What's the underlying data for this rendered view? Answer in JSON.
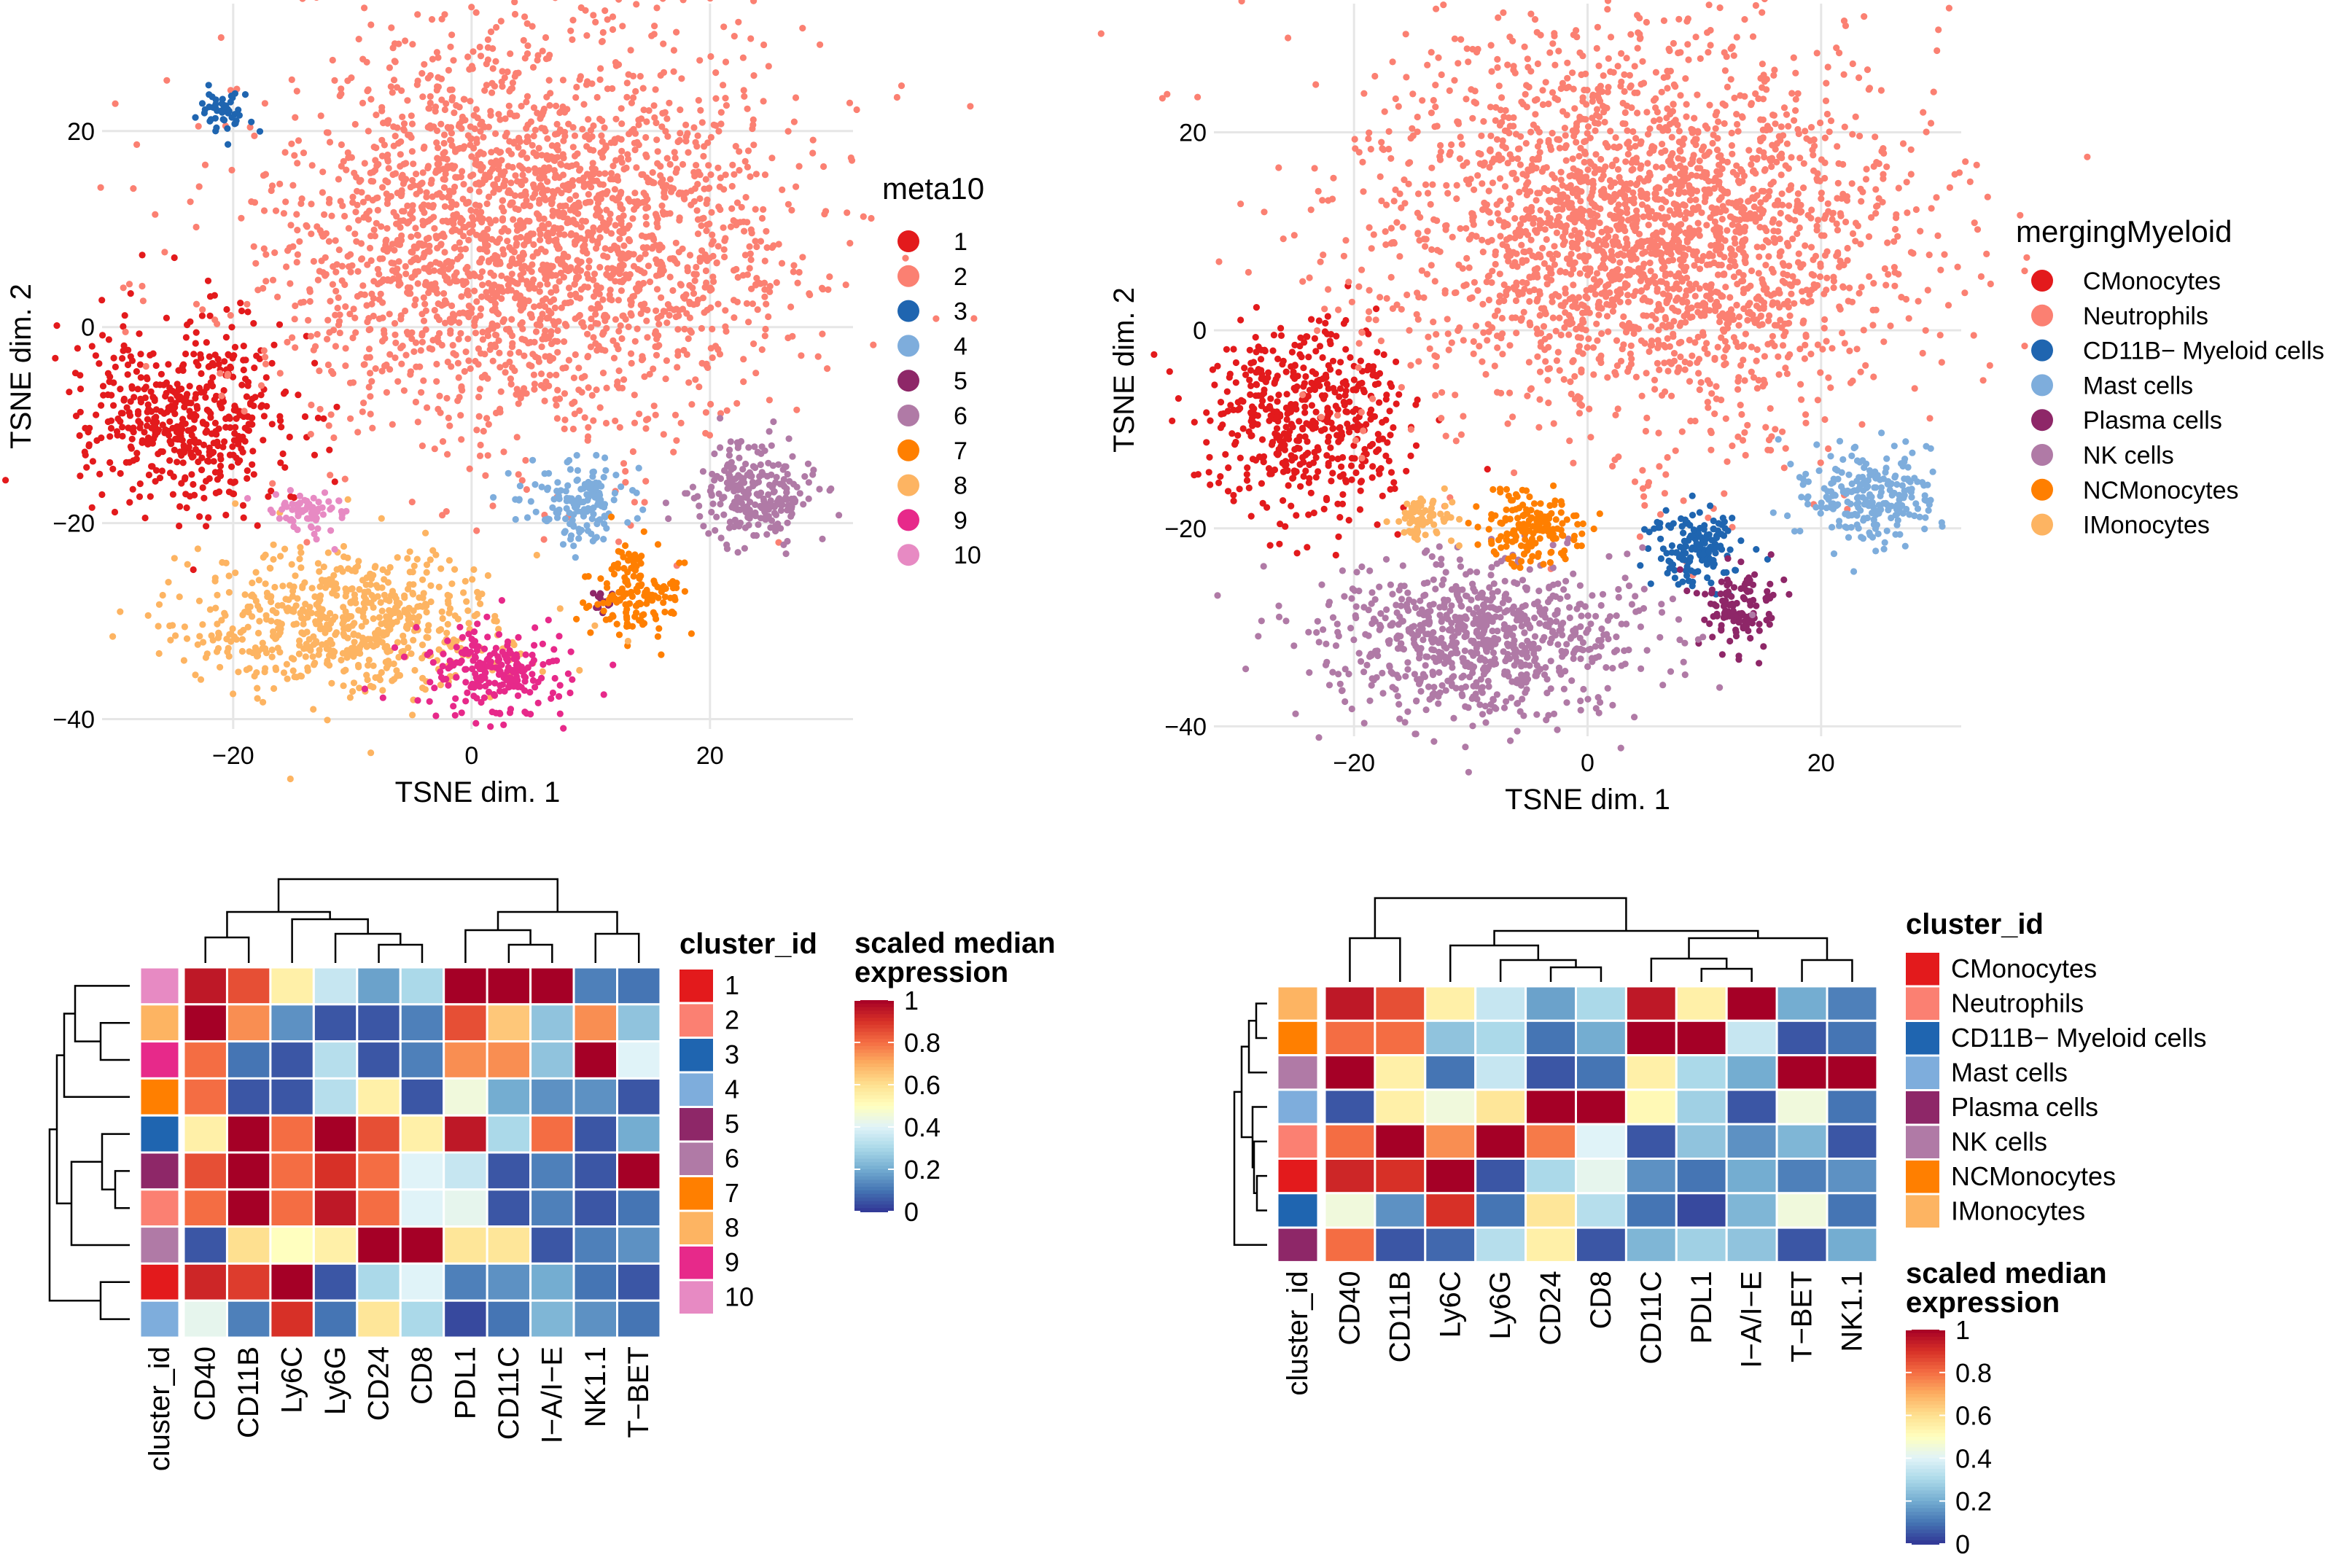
{
  "colors": {
    "palette10": [
      "#e31a1c",
      "#fb8072",
      "#1f65b0",
      "#7eaddc",
      "#8e2768",
      "#b07aa6",
      "#ff7f00",
      "#fdb462",
      "#e7298a",
      "#e78ac3"
    ],
    "gradient": [
      "#313695",
      "#4575b4",
      "#74add1",
      "#abd9e9",
      "#e0f3f8",
      "#ffffbf",
      "#fee090",
      "#fdae61",
      "#f46d43",
      "#d73027",
      "#a50026"
    ]
  },
  "chart_data": [
    {
      "type": "scatter",
      "id": "tsne-meta10",
      "xlabel": "TSNE dim. 1",
      "ylabel": "TSNE dim. 2",
      "xlim": [
        -31,
        32
      ],
      "ylim": [
        -41,
        33
      ],
      "xticks": [
        -20,
        0,
        20
      ],
      "xtick_labels": [
        "−20",
        "0",
        "20"
      ],
      "yticks": [
        20,
        0,
        -20,
        -40
      ],
      "ytick_labels": [
        "20",
        "0",
        "−20",
        "−40"
      ],
      "grid": true,
      "legend_title": "meta10",
      "legend_labels": [
        "1",
        "2",
        "3",
        "4",
        "5",
        "6",
        "7",
        "8",
        "9",
        "10"
      ],
      "clusters": [
        {
          "label": "1",
          "color_index": 0,
          "center": [
            -24,
            -9
          ],
          "spread": [
            4.2,
            5.0
          ],
          "n": 500
        },
        {
          "label": "2",
          "color_index": 1,
          "center": [
            5,
            10
          ],
          "spread": [
            11.0,
            10.0
          ],
          "n": 2500
        },
        {
          "label": "3",
          "color_index": 2,
          "center": [
            -21,
            22
          ],
          "spread": [
            1.0,
            1.2
          ],
          "n": 50
        },
        {
          "label": "4",
          "color_index": 3,
          "center": [
            9,
            -18
          ],
          "spread": [
            2.2,
            2.0
          ],
          "n": 150
        },
        {
          "label": "5",
          "color_index": 4,
          "center": [
            11,
            -28
          ],
          "spread": [
            0.6,
            0.6
          ],
          "n": 12
        },
        {
          "label": "6",
          "color_index": 5,
          "center": [
            24,
            -17
          ],
          "spread": [
            2.6,
            2.5
          ],
          "n": 240
        },
        {
          "label": "7",
          "color_index": 6,
          "center": [
            14,
            -27
          ],
          "spread": [
            2.0,
            2.2
          ],
          "n": 150
        },
        {
          "label": "8",
          "color_index": 7,
          "center": [
            -10,
            -30
          ],
          "spread": [
            6.5,
            3.5
          ],
          "n": 650
        },
        {
          "label": "9",
          "color_index": 8,
          "center": [
            2,
            -35
          ],
          "spread": [
            3.0,
            2.3
          ],
          "n": 220
        },
        {
          "label": "10",
          "color_index": 9,
          "center": [
            -14,
            -19
          ],
          "spread": [
            1.5,
            1.1
          ],
          "n": 70
        }
      ]
    },
    {
      "type": "scatter",
      "id": "tsne-merging",
      "xlabel": "TSNE dim. 1",
      "ylabel": "TSNE dim. 2",
      "xlim": [
        -32,
        32
      ],
      "ylim": [
        -41,
        33
      ],
      "xticks": [
        -20,
        0,
        20
      ],
      "xtick_labels": [
        "−20",
        "0",
        "20"
      ],
      "yticks": [
        20,
        0,
        -20,
        -40
      ],
      "ytick_labels": [
        "20",
        "0",
        "−20",
        "−40"
      ],
      "grid": true,
      "legend_title": "mergingMyeloid",
      "legend_labels": [
        "CMonocytes",
        "Neutrophils",
        "CD11B− Myeloid cells",
        "Mast cells",
        "Plasma cells",
        "NK cells",
        "NCMonocytes",
        "IMonocytes"
      ],
      "clusters": [
        {
          "label": "CMonocytes",
          "color_index": 0,
          "center": [
            -24,
            -9
          ],
          "spread": [
            4.2,
            5.0
          ],
          "n": 500
        },
        {
          "label": "Neutrophils",
          "color_index": 1,
          "center": [
            5,
            10
          ],
          "spread": [
            11.0,
            10.0
          ],
          "n": 2500
        },
        {
          "label": "CD11B− Myeloid cells",
          "color_index": 2,
          "center": [
            9,
            -22
          ],
          "spread": [
            2.0,
            2.0
          ],
          "n": 150
        },
        {
          "label": "Mast cells",
          "color_index": 3,
          "center": [
            24,
            -17
          ],
          "spread": [
            2.6,
            2.5
          ],
          "n": 240
        },
        {
          "label": "Plasma cells",
          "color_index": 4,
          "center": [
            13,
            -28
          ],
          "spread": [
            1.6,
            1.8
          ],
          "n": 120
        },
        {
          "label": "NK cells",
          "color_index": 5,
          "center": [
            -9,
            -31
          ],
          "spread": [
            7.0,
            3.8
          ],
          "n": 800
        },
        {
          "label": "NCMonocytes",
          "color_index": 6,
          "center": [
            -5,
            -20
          ],
          "spread": [
            2.3,
            1.8
          ],
          "n": 160
        },
        {
          "label": "IMonocytes",
          "color_index": 7,
          "center": [
            -14,
            -19
          ],
          "spread": [
            1.5,
            1.2
          ],
          "n": 70
        }
      ]
    },
    {
      "type": "heatmap",
      "id": "heatmap-meta10",
      "columns": [
        "CD40",
        "CD11B",
        "Ly6C",
        "Ly6G",
        "CD24",
        "CD8",
        "PDL1",
        "CD11C",
        "I−A/I−E",
        "NK1.1",
        "T−BET"
      ],
      "row_label_axis": "cluster_id",
      "rows": [
        "10",
        "8",
        "9",
        "7",
        "3",
        "5",
        "2",
        "6",
        "1",
        "4"
      ],
      "row_color_index": [
        9,
        7,
        8,
        6,
        2,
        4,
        1,
        5,
        0,
        3
      ],
      "values": [
        [
          0.95,
          0.85,
          0.55,
          0.35,
          0.18,
          0.3,
          1.0,
          1.0,
          1.0,
          0.12,
          0.1
        ],
        [
          1.0,
          0.75,
          0.15,
          0.05,
          0.05,
          0.12,
          0.85,
          0.65,
          0.25,
          0.75,
          0.25
        ],
        [
          0.8,
          0.1,
          0.05,
          0.32,
          0.05,
          0.12,
          0.75,
          0.75,
          0.25,
          1.0,
          0.4
        ],
        [
          0.8,
          0.05,
          0.05,
          0.32,
          0.55,
          0.05,
          0.45,
          0.2,
          0.15,
          0.15,
          0.05
        ],
        [
          0.55,
          1.0,
          0.8,
          1.0,
          0.85,
          0.55,
          0.95,
          0.3,
          0.8,
          0.05,
          0.2
        ],
        [
          0.85,
          1.0,
          0.8,
          0.9,
          0.8,
          0.4,
          0.35,
          0.05,
          0.12,
          0.05,
          1.0
        ],
        [
          0.8,
          1.0,
          0.8,
          0.95,
          0.8,
          0.4,
          0.42,
          0.05,
          0.12,
          0.05,
          0.1
        ],
        [
          0.05,
          0.6,
          0.5,
          0.55,
          1.0,
          1.0,
          0.58,
          0.58,
          0.05,
          0.12,
          0.15
        ],
        [
          0.92,
          0.88,
          1.0,
          0.05,
          0.3,
          0.4,
          0.12,
          0.15,
          0.2,
          0.1,
          0.05
        ],
        [
          0.42,
          0.12,
          0.9,
          0.1,
          0.58,
          0.3,
          0.03,
          0.1,
          0.22,
          0.15,
          0.1
        ]
      ],
      "dendrogram_note": "column and row hierarchical clustering",
      "legend_title": "cluster_id",
      "legend_labels": [
        "1",
        "2",
        "3",
        "4",
        "5",
        "6",
        "7",
        "8",
        "9",
        "10"
      ],
      "colorbar_title": [
        "scaled median",
        "expression"
      ],
      "colorbar_ticks": [
        "1",
        "0.8",
        "0.6",
        "0.4",
        "0.2",
        "0"
      ]
    },
    {
      "type": "heatmap",
      "id": "heatmap-merging",
      "columns": [
        "CD40",
        "CD11B",
        "Ly6C",
        "Ly6G",
        "CD24",
        "CD8",
        "CD11C",
        "PDL1",
        "I−A/I−E",
        "T−BET",
        "NK1.1"
      ],
      "row_label_axis": "cluster_id",
      "rows": [
        "IMonocytes",
        "NCMonocytes",
        "NK cells",
        "Mast cells",
        "Neutrophils",
        "CMonocytes",
        "CD11B− Myeloid cells",
        "Plasma cells"
      ],
      "row_color_index": [
        7,
        6,
        5,
        3,
        1,
        0,
        2,
        4
      ],
      "values": [
        [
          0.95,
          0.85,
          0.55,
          0.35,
          0.18,
          0.3,
          0.95,
          0.55,
          1.0,
          0.2,
          0.12
        ],
        [
          0.8,
          0.8,
          0.25,
          0.3,
          0.1,
          0.2,
          1.0,
          1.0,
          0.35,
          0.05,
          0.1
        ],
        [
          1.0,
          0.55,
          0.1,
          0.35,
          0.05,
          0.1,
          0.55,
          0.3,
          0.2,
          1.0,
          1.0
        ],
        [
          0.05,
          0.55,
          0.45,
          0.58,
          1.0,
          1.0,
          0.52,
          0.28,
          0.05,
          0.45,
          0.1
        ],
        [
          0.8,
          1.0,
          0.75,
          1.0,
          0.78,
          0.4,
          0.05,
          0.25,
          0.15,
          0.22,
          0.05
        ],
        [
          0.92,
          0.9,
          1.0,
          0.05,
          0.3,
          0.42,
          0.15,
          0.1,
          0.2,
          0.12,
          0.15
        ],
        [
          0.45,
          0.15,
          0.9,
          0.1,
          0.58,
          0.32,
          0.1,
          0.03,
          0.22,
          0.45,
          0.1
        ],
        [
          0.8,
          0.05,
          0.08,
          0.32,
          0.55,
          0.05,
          0.22,
          0.28,
          0.25,
          0.05,
          0.2
        ]
      ],
      "dendrogram_note": "column and row hierarchical clustering",
      "legend_title": "cluster_id",
      "legend_labels": [
        "CMonocytes",
        "Neutrophils",
        "CD11B− Myeloid cells",
        "Mast cells",
        "Plasma cells",
        "NK cells",
        "NCMonocytes",
        "IMonocytes"
      ],
      "colorbar_title": [
        "scaled median",
        "expression"
      ],
      "colorbar_ticks": [
        "1",
        "0.8",
        "0.6",
        "0.4",
        "0.2",
        "0"
      ]
    }
  ]
}
